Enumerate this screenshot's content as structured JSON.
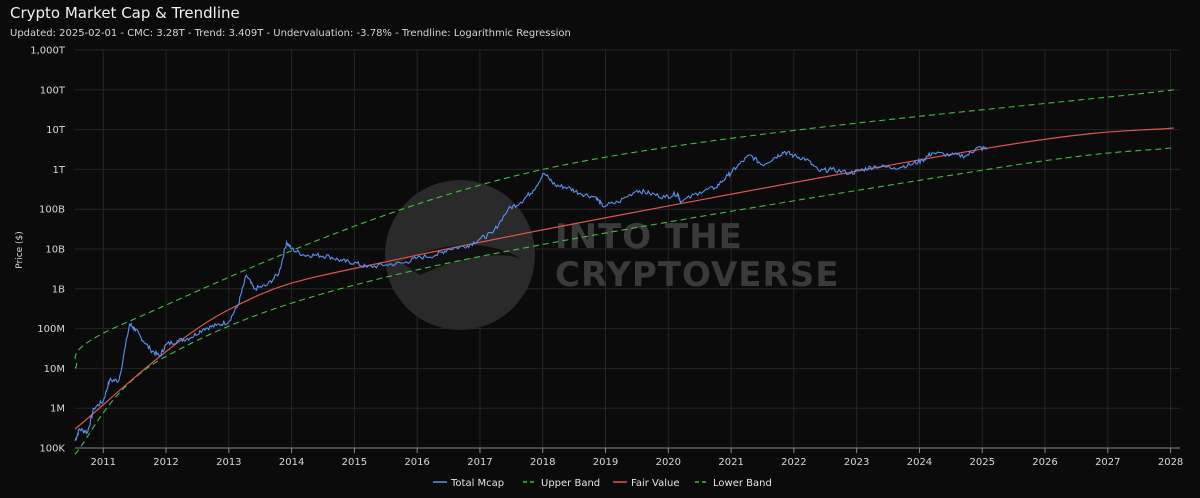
{
  "chart_data": {
    "type": "line",
    "title": "Crypto Market Cap & Trendline",
    "subtitle": "Updated: 2025-02-01 - CMC: 3.28T - Trend: 3.409T - Undervaluation: -3.78% - Trendline: Logarithmic Regression",
    "ylabel": "Price ($)",
    "xlabel": "",
    "y_scale": "log",
    "ylim": [
      100000,
      1000000000000000
    ],
    "xlim": [
      2010.55,
      2028.15
    ],
    "y_ticks": [
      {
        "value": 100000,
        "label": "100K"
      },
      {
        "value": 1000000,
        "label": "1M"
      },
      {
        "value": 10000000,
        "label": "10M"
      },
      {
        "value": 100000000,
        "label": "100M"
      },
      {
        "value": 1000000000,
        "label": "1B"
      },
      {
        "value": 10000000000,
        "label": "10B"
      },
      {
        "value": 100000000000,
        "label": "100B"
      },
      {
        "value": 1000000000000,
        "label": "1T"
      },
      {
        "value": 10000000000000,
        "label": "10T"
      },
      {
        "value": 100000000000000,
        "label": "100T"
      },
      {
        "value": 1000000000000000,
        "label": "1,000T"
      }
    ],
    "x_ticks": [
      {
        "value": 2011,
        "label": "2011"
      },
      {
        "value": 2012,
        "label": "2012"
      },
      {
        "value": 2013,
        "label": "2013"
      },
      {
        "value": 2014,
        "label": "2014"
      },
      {
        "value": 2015,
        "label": "2015"
      },
      {
        "value": 2016,
        "label": "2016"
      },
      {
        "value": 2017,
        "label": "2017"
      },
      {
        "value": 2018,
        "label": "2018"
      },
      {
        "value": 2019,
        "label": "2019"
      },
      {
        "value": 2020,
        "label": "2020"
      },
      {
        "value": 2021,
        "label": "2021"
      },
      {
        "value": 2022,
        "label": "2022"
      },
      {
        "value": 2023,
        "label": "2023"
      },
      {
        "value": 2024,
        "label": "2024"
      },
      {
        "value": 2025,
        "label": "2025"
      },
      {
        "value": 2026,
        "label": "2026"
      },
      {
        "value": 2027,
        "label": "2027"
      },
      {
        "value": 2028,
        "label": "2028"
      }
    ],
    "grid": true,
    "legend_position": "bottom",
    "series": [
      {
        "name": "Total Mcap",
        "color": "#5b8ff0",
        "style": "solid",
        "points": [
          [
            2010.55,
            150000
          ],
          [
            2010.62,
            300000
          ],
          [
            2010.75,
            250000
          ],
          [
            2010.85,
            1000000
          ],
          [
            2011.0,
            1500000
          ],
          [
            2011.1,
            5000000
          ],
          [
            2011.25,
            5000000
          ],
          [
            2011.42,
            130000000
          ],
          [
            2011.5,
            100000000
          ],
          [
            2011.6,
            60000000
          ],
          [
            2011.75,
            30000000
          ],
          [
            2011.9,
            20000000
          ],
          [
            2012.0,
            40000000
          ],
          [
            2012.2,
            50000000
          ],
          [
            2012.4,
            60000000
          ],
          [
            2012.6,
            100000000
          ],
          [
            2012.8,
            120000000
          ],
          [
            2013.0,
            150000000
          ],
          [
            2013.15,
            400000000
          ],
          [
            2013.28,
            2200000000
          ],
          [
            2013.4,
            1000000000
          ],
          [
            2013.6,
            1200000000
          ],
          [
            2013.8,
            2500000000
          ],
          [
            2013.92,
            15000000000
          ],
          [
            2014.0,
            10000000000
          ],
          [
            2014.2,
            7000000000
          ],
          [
            2014.4,
            7000000000
          ],
          [
            2014.6,
            6500000000
          ],
          [
            2014.8,
            5000000000
          ],
          [
            2015.0,
            4500000000
          ],
          [
            2015.2,
            3500000000
          ],
          [
            2015.5,
            4000000000
          ],
          [
            2015.8,
            4500000000
          ],
          [
            2016.0,
            6000000000
          ],
          [
            2016.3,
            7000000000
          ],
          [
            2016.5,
            10000000000
          ],
          [
            2016.8,
            12000000000
          ],
          [
            2017.0,
            18000000000
          ],
          [
            2017.2,
            25000000000
          ],
          [
            2017.45,
            100000000000
          ],
          [
            2017.65,
            150000000000
          ],
          [
            2017.85,
            300000000000
          ],
          [
            2018.02,
            800000000000
          ],
          [
            2018.2,
            400000000000
          ],
          [
            2018.4,
            350000000000
          ],
          [
            2018.6,
            250000000000
          ],
          [
            2018.85,
            200000000000
          ],
          [
            2018.95,
            120000000000
          ],
          [
            2019.2,
            150000000000
          ],
          [
            2019.5,
            300000000000
          ],
          [
            2019.7,
            250000000000
          ],
          [
            2019.95,
            200000000000
          ],
          [
            2020.15,
            250000000000
          ],
          [
            2020.2,
            150000000000
          ],
          [
            2020.5,
            270000000000
          ],
          [
            2020.75,
            350000000000
          ],
          [
            2020.95,
            700000000000
          ],
          [
            2021.1,
            1200000000000
          ],
          [
            2021.3,
            2300000000000
          ],
          [
            2021.5,
            1300000000000
          ],
          [
            2021.7,
            2000000000000
          ],
          [
            2021.85,
            2800000000000
          ],
          [
            2022.0,
            2200000000000
          ],
          [
            2022.2,
            1800000000000
          ],
          [
            2022.4,
            900000000000
          ],
          [
            2022.6,
            1000000000000
          ],
          [
            2022.9,
            800000000000
          ],
          [
            2023.1,
            1000000000000
          ],
          [
            2023.3,
            1200000000000
          ],
          [
            2023.6,
            1100000000000
          ],
          [
            2023.85,
            1300000000000
          ],
          [
            2024.05,
            1700000000000
          ],
          [
            2024.2,
            2600000000000
          ],
          [
            2024.5,
            2300000000000
          ],
          [
            2024.75,
            2200000000000
          ],
          [
            2024.92,
            3500000000000
          ],
          [
            2025.08,
            3300000000000
          ]
        ]
      },
      {
        "name": "Upper Band",
        "color": "#3fbf3f",
        "style": "dashed"
      },
      {
        "name": "Fair Value",
        "color": "#e0554f",
        "style": "solid"
      },
      {
        "name": "Lower Band",
        "color": "#3fbf3f",
        "style": "dashed"
      }
    ],
    "trendline": {
      "type": "logarithmic regression",
      "fair_value_points": [
        [
          2010.55,
          300000
        ],
        [
          2013.0,
          300000000
        ],
        [
          2016.0,
          7000000000
        ],
        [
          2025.08,
          3409000000000
        ],
        [
          2028.05,
          11000000000000
        ]
      ],
      "upper_band_points": [
        [
          2010.55,
          10000000
        ],
        [
          2011.4,
          150000000
        ],
        [
          2018.0,
          1000000000000
        ],
        [
          2028.05,
          100000000000000
        ]
      ],
      "lower_band_points": [
        [
          2010.55,
          70000
        ],
        [
          2012.0,
          20000000
        ],
        [
          2016.0,
          3000000000
        ],
        [
          2025.08,
          1000000000000
        ],
        [
          2028.05,
          3500000000000
        ]
      ]
    }
  },
  "watermark": {
    "line1": "INTO THE",
    "line2": "CRYPTOVERSE"
  }
}
